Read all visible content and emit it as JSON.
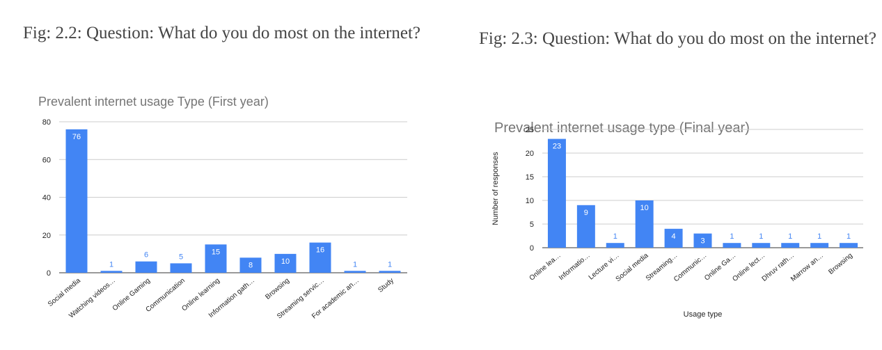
{
  "figures": [
    {
      "caption": "Fig: 2.2: Question: What do you do most on the internet?",
      "chart_data": {
        "type": "bar",
        "title": "Prevalent internet usage Type (First year)",
        "xlabel": "",
        "ylabel": "",
        "categories": [
          "Social media",
          "Watching videos…",
          "Online Gaming",
          "Communication",
          "Online learning",
          "Information gath…",
          "Browsing",
          "Streaming servic…",
          "For academic an…",
          "Study"
        ],
        "values": [
          76,
          1,
          6,
          5,
          15,
          8,
          10,
          16,
          1,
          1
        ],
        "data_labels": [
          "76",
          "1",
          "6",
          "5",
          "15",
          "8",
          "10",
          "16",
          "1",
          "1"
        ],
        "ylim": [
          0,
          80
        ],
        "yticks": [
          0,
          20,
          40,
          60,
          80
        ],
        "grid": true,
        "legend": "none",
        "bar_color": "#4285f4",
        "gridline_color": "#cccccc"
      }
    },
    {
      "caption": "Fig: 2.3: Question: What do you do most on the internet?",
      "chart_data": {
        "type": "bar",
        "title": "Prevalent internet usage type (Final year)",
        "xlabel": "Usage type",
        "ylabel": "Number of responses",
        "categories": [
          "Online lea…",
          "Informatio…",
          "Lecture vi…",
          "Social media",
          "Streaming…",
          "Communic…",
          "Online Ga…",
          "Online lect…",
          "Dhruv rath…",
          "Marrow an…",
          "Browsing"
        ],
        "values": [
          23,
          9,
          1,
          10,
          4,
          3,
          1,
          1,
          1,
          1,
          1
        ],
        "data_labels": [
          "23",
          "9",
          "1",
          "10",
          "4",
          "3",
          "1",
          "1",
          "1",
          "1",
          "1"
        ],
        "ylim": [
          0,
          25
        ],
        "yticks": [
          0,
          5,
          10,
          15,
          20,
          25
        ],
        "grid": true,
        "legend": "none",
        "bar_color": "#4285f4",
        "gridline_color": "#cccccc"
      }
    }
  ]
}
